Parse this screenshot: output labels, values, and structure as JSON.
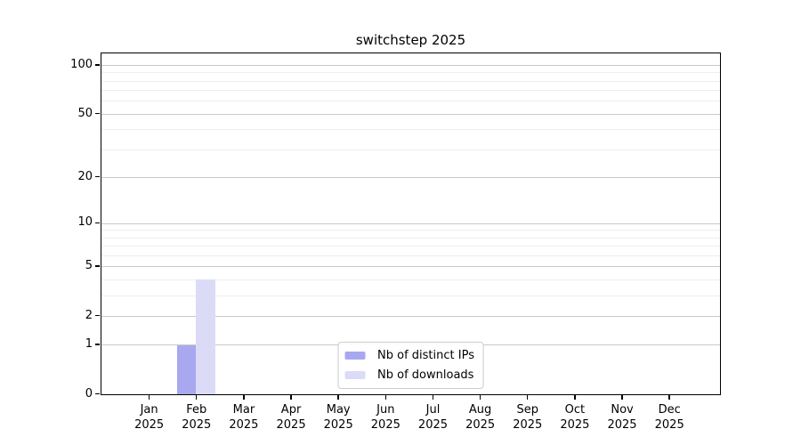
{
  "title": "switchstep 2025",
  "chart_data": {
    "type": "bar",
    "title": "switchstep 2025",
    "categories": [
      "Jan 2025",
      "Feb 2025",
      "Mar 2025",
      "Apr 2025",
      "May 2025",
      "Jun 2025",
      "Jul 2025",
      "Aug 2025",
      "Sep 2025",
      "Oct 2025",
      "Nov 2025",
      "Dec 2025"
    ],
    "series": [
      {
        "name": "Nb of distinct IPs",
        "color": "#a8a8f0",
        "values": [
          0,
          1,
          0,
          0,
          0,
          0,
          0,
          0,
          0,
          0,
          0,
          0
        ]
      },
      {
        "name": "Nb of downloads",
        "color": "#dbdbf8",
        "values": [
          0,
          4,
          0,
          0,
          0,
          0,
          0,
          0,
          0,
          0,
          0,
          0
        ]
      }
    ],
    "xlabel": "",
    "ylabel": "",
    "yscale": "log1p",
    "ylim": [
      0,
      117
    ],
    "yticks_major": [
      0,
      1,
      2,
      5,
      10,
      20,
      50,
      100
    ],
    "yticks_minor": [
      3,
      4,
      6,
      7,
      8,
      9,
      30,
      40,
      60,
      70,
      80,
      90
    ],
    "grid": true,
    "legend_position": "lower center",
    "colors": {
      "grid_major": "#c9c9c9",
      "grid_minor": "#ededed",
      "spine": "#000000",
      "background": "#ffffff"
    }
  }
}
